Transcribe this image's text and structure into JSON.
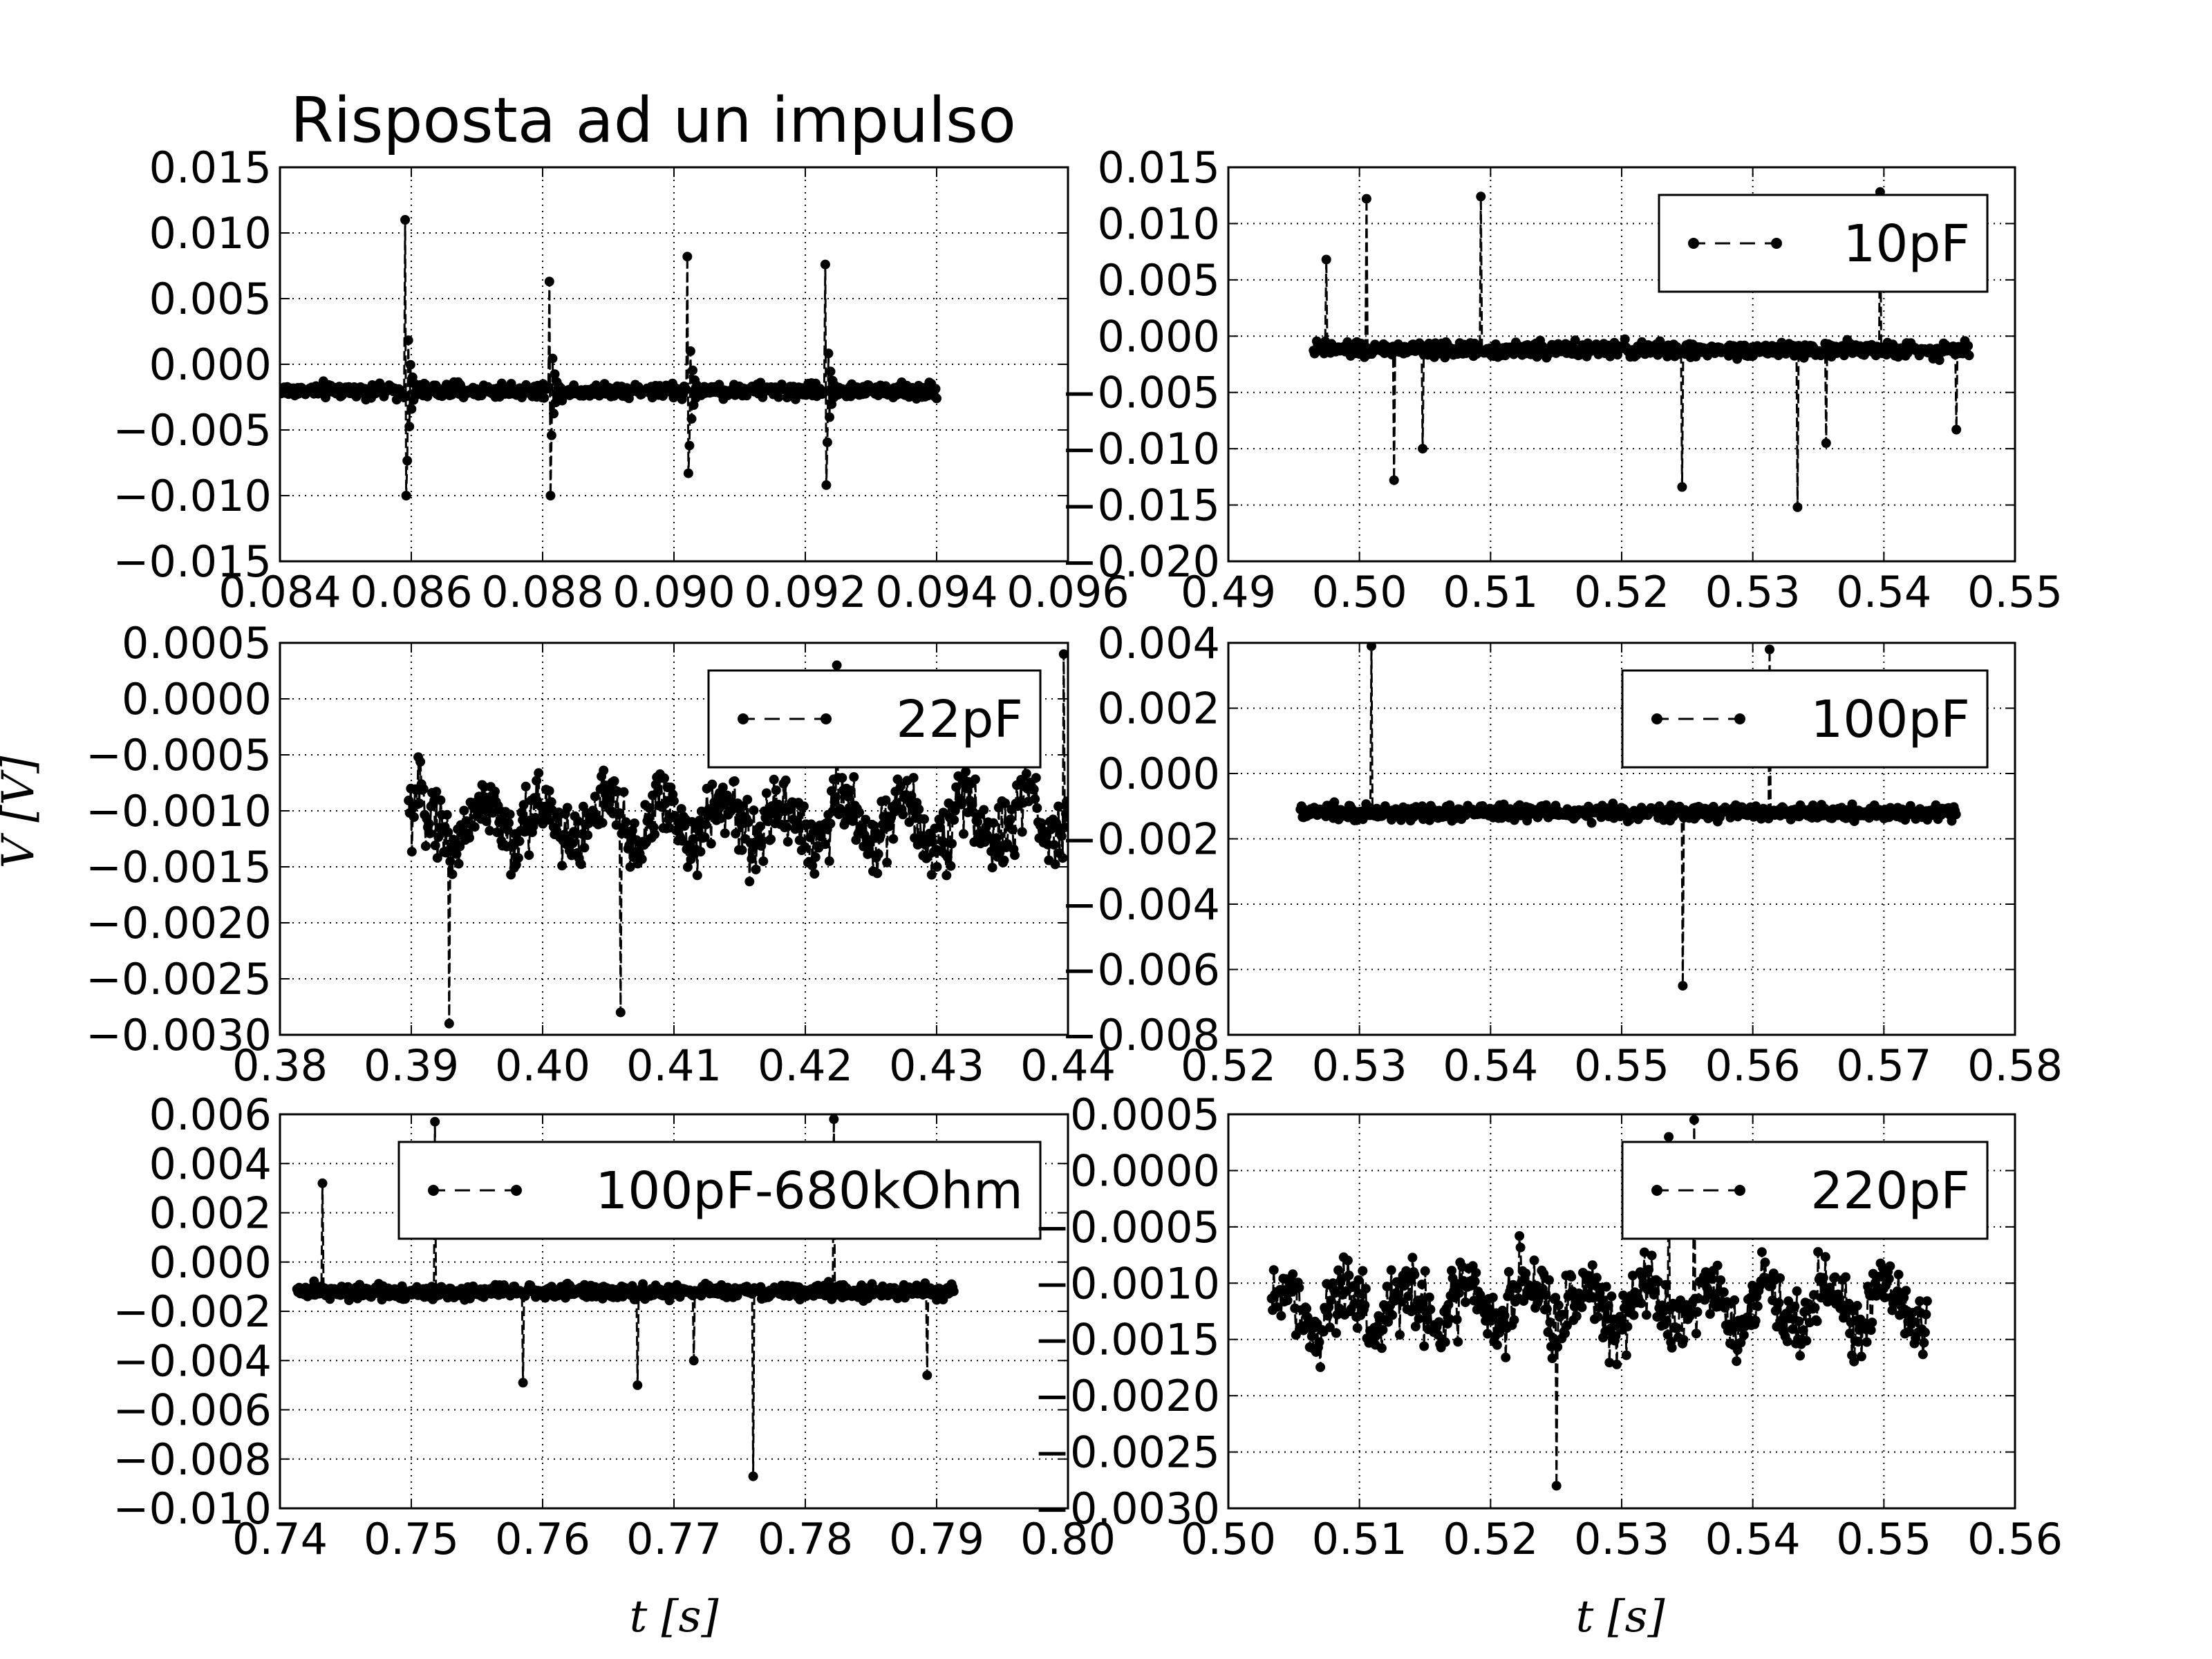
{
  "figure": {
    "title": "Risposta ad un impulso",
    "ylabel": "V [V]",
    "xlabel": "t [s]"
  },
  "chart_data": [
    {
      "type": "line",
      "legend": "",
      "xlim": [
        0.084,
        0.096
      ],
      "ylim": [
        -0.015,
        0.015
      ],
      "xticks": [
        "0.084",
        "0.086",
        "0.088",
        "0.090",
        "0.092",
        "0.094",
        "0.096"
      ],
      "yticks": [
        "−0.015",
        "−0.010",
        "−0.005",
        "0.000",
        "0.005",
        "0.010",
        "0.015"
      ],
      "grid": true,
      "series": [
        {
          "style": "dashed line with filled circle markers",
          "x_range": [
            0.084,
            0.094
          ],
          "baseline": -0.002,
          "spikes": [
            {
              "x": 0.0859,
              "max": 0.011,
              "min": -0.01
            },
            {
              "x": 0.0881,
              "max": 0.0063,
              "min": -0.01
            },
            {
              "x": 0.0902,
              "max": 0.0082,
              "min": -0.0083
            },
            {
              "x": 0.0923,
              "max": 0.0076,
              "min": -0.0092
            }
          ]
        }
      ]
    },
    {
      "type": "line",
      "legend": "10pF",
      "legend_position": "top-right",
      "xlim": [
        0.49,
        0.55
      ],
      "ylim": [
        -0.02,
        0.015
      ],
      "xticks": [
        "0.49",
        "0.50",
        "0.51",
        "0.52",
        "0.53",
        "0.54",
        "0.55"
      ],
      "yticks": [
        "−0.020",
        "−0.015",
        "−0.010",
        "−0.005",
        "0.000",
        "0.005",
        "0.010",
        "0.015"
      ],
      "grid": true,
      "series": [
        {
          "name": "10pF",
          "x_range": [
            0.4965,
            0.5465
          ],
          "baseline": -0.0012,
          "spikes": [
            {
              "x": 0.4975,
              "max": 0.0068
            },
            {
              "x": 0.5005,
              "max": 0.0122
            },
            {
              "x": 0.5093,
              "max": 0.0124
            },
            {
              "x": 0.5397,
              "max": 0.0128
            },
            {
              "x": 0.5026,
              "min": -0.0128
            },
            {
              "x": 0.5048,
              "min": -0.01
            },
            {
              "x": 0.5246,
              "min": -0.0134
            },
            {
              "x": 0.5334,
              "min": -0.0152
            },
            {
              "x": 0.5356,
              "min": -0.0095
            },
            {
              "x": 0.5455,
              "min": -0.0083
            }
          ]
        }
      ]
    },
    {
      "type": "line",
      "legend": "22pF",
      "legend_position": "top-right",
      "xlim": [
        0.38,
        0.44
      ],
      "ylim": [
        -0.003,
        0.0005
      ],
      "xticks": [
        "0.38",
        "0.39",
        "0.40",
        "0.41",
        "0.42",
        "0.43",
        "0.44"
      ],
      "yticks": [
        "−0.0030",
        "−0.0025",
        "−0.0020",
        "−0.0015",
        "−0.0010",
        "−0.0005",
        "0.0000",
        "0.0005"
      ],
      "grid": true,
      "series": [
        {
          "name": "22pF",
          "x_range": [
            0.3898,
            0.44
          ],
          "baseline": -0.0011,
          "spikes": [
            {
              "x": 0.3929,
              "min": -0.0029
            },
            {
              "x": 0.4059,
              "min": -0.0028
            },
            {
              "x": 0.4224,
              "max": 0.0003
            },
            {
              "x": 0.4397,
              "max": 0.0004
            }
          ]
        }
      ]
    },
    {
      "type": "line",
      "legend": "100pF",
      "legend_position": "top-right",
      "xlim": [
        0.52,
        0.58
      ],
      "ylim": [
        -0.008,
        0.004
      ],
      "xticks": [
        "0.52",
        "0.53",
        "0.54",
        "0.55",
        "0.56",
        "0.57",
        "0.58"
      ],
      "yticks": [
        "−0.008",
        "−0.006",
        "−0.004",
        "−0.002",
        "0.000",
        "0.002",
        "0.004"
      ],
      "grid": true,
      "series": [
        {
          "name": "100pF",
          "x_range": [
            0.5255,
            0.5755
          ],
          "baseline": -0.0012,
          "spikes": [
            {
              "x": 0.5309,
              "max": 0.0039
            },
            {
              "x": 0.5613,
              "max": 0.0038
            },
            {
              "x": 0.5547,
              "min": -0.0065
            }
          ]
        }
      ]
    },
    {
      "type": "line",
      "legend": "100pF-680kOhm",
      "legend_position": "top-right",
      "xlim": [
        0.74,
        0.8
      ],
      "ylim": [
        -0.01,
        0.006
      ],
      "xticks": [
        "0.74",
        "0.75",
        "0.76",
        "0.77",
        "0.78",
        "0.79",
        "0.80"
      ],
      "yticks": [
        "−0.010",
        "−0.008",
        "−0.006",
        "−0.004",
        "−0.002",
        "0.000",
        "0.002",
        "0.004",
        "0.006"
      ],
      "grid": true,
      "series": [
        {
          "name": "100pF-680kOhm",
          "x_range": [
            0.7413,
            0.7913
          ],
          "baseline": -0.0012,
          "spikes": [
            {
              "x": 0.7432,
              "max": 0.0032
            },
            {
              "x": 0.7518,
              "max": 0.0057
            },
            {
              "x": 0.7822,
              "max": 0.0058
            },
            {
              "x": 0.776,
              "min": -0.0087
            },
            {
              "x": 0.7672,
              "min": -0.005
            },
            {
              "x": 0.7585,
              "min": -0.0049
            },
            {
              "x": 0.7893,
              "min": -0.0046
            },
            {
              "x": 0.7715,
              "min": -0.004
            }
          ]
        }
      ]
    },
    {
      "type": "line",
      "legend": "220pF",
      "legend_position": "top-right",
      "xlim": [
        0.5,
        0.56
      ],
      "ylim": [
        -0.003,
        0.0005
      ],
      "xticks": [
        "0.50",
        "0.51",
        "0.52",
        "0.53",
        "0.54",
        "0.55",
        "0.56"
      ],
      "yticks": [
        "−0.0030",
        "−0.0025",
        "−0.0020",
        "−0.0015",
        "−0.0010",
        "−0.0005",
        "0.0000",
        "0.0005"
      ],
      "grid": true,
      "series": [
        {
          "name": "220pF",
          "x_range": [
            0.5033,
            0.5533
          ],
          "baseline": -0.0012,
          "spikes": [
            {
              "x": 0.525,
              "min": -0.0028
            },
            {
              "x": 0.5355,
              "max": 0.00045
            },
            {
              "x": 0.5336,
              "max": 0.0003
            }
          ]
        }
      ]
    }
  ]
}
